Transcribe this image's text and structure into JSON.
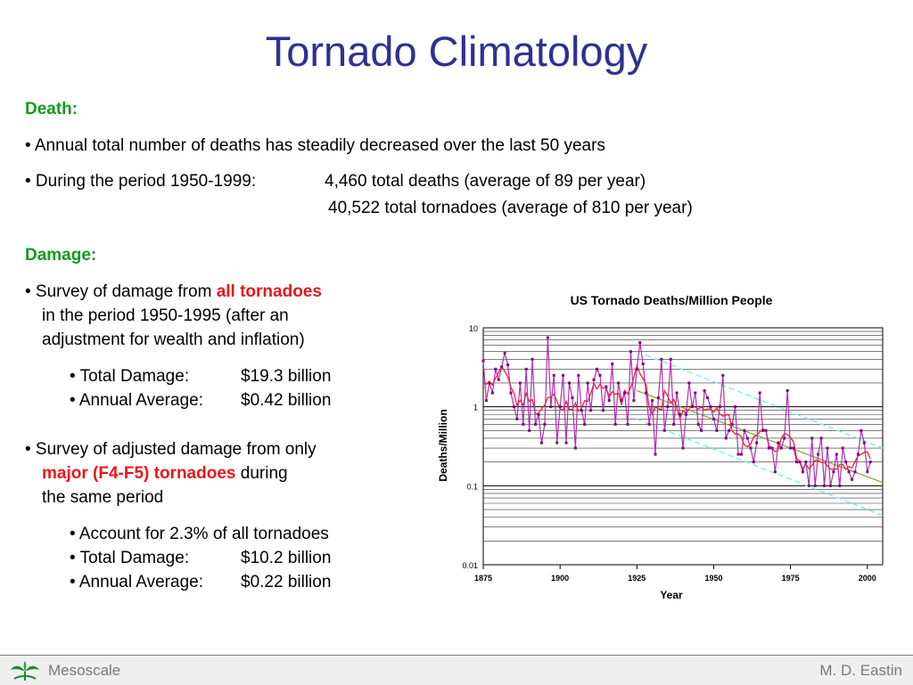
{
  "title": "Tornado Climatology",
  "death": {
    "heading": "Death:",
    "bullet1": "• Annual total number of deaths has steadily decreased over the last 50 years",
    "bullet2a": "• During the period 1950-1999:",
    "bullet2b": "4,460 total deaths (average of 89 per year)",
    "bullet2c": "40,522 total tornadoes (average of 810 per year)"
  },
  "damage": {
    "heading": "Damage:",
    "s1_pre": "• Survey of damage from ",
    "s1_red": "all tornadoes",
    "s1_l2": "in the period 1950-1995 (after an",
    "s1_l3": "adjustment for wealth and inflation)",
    "s1_i1_label": "• Total Damage:",
    "s1_i1_value": "$19.3 billion",
    "s1_i2_label": "• Annual Average:",
    "s1_i2_value": "$0.42 billion",
    "s2_l1": "• Survey of adjusted damage from only",
    "s2_red": "major (F4-F5) tornadoes",
    "s2_post": " during",
    "s2_l3": "the same period",
    "s2_i1": "• Account for 2.3% of all tornadoes",
    "s2_i2_label": "• Total Damage:",
    "s2_i2_value": "$10.2 billion",
    "s2_i3_label": "• Annual Average:",
    "s2_i3_value": "$0.22 billion"
  },
  "footer": {
    "left": "Mesoscale",
    "right": "M. D. Eastin"
  },
  "colors": {
    "title": "#2e3192",
    "heading": "#129b1d",
    "emphasis": "#e8171a",
    "series_annual": "#b030b0",
    "series_smoothed": "#ff2020",
    "trend": "#80a030",
    "envelope": "#80f0f0"
  },
  "chart_data": {
    "type": "line",
    "title": "US Tornado Deaths/Million People",
    "xlabel": "Year",
    "ylabel": "Deaths/Million",
    "yscale": "log",
    "ylim": [
      0.01,
      10
    ],
    "xlim": [
      1875,
      2005
    ],
    "xticks": [
      1875,
      1900,
      1925,
      1950,
      1975,
      2000
    ],
    "yticks": [
      10,
      1,
      0.1,
      0.01
    ],
    "ytick_labels": [
      "10",
      "1",
      "0.1",
      "0.01"
    ],
    "grid": true,
    "series": [
      {
        "x": [
          1875,
          1876,
          1877,
          1878,
          1879,
          1880,
          1881,
          1882,
          1883,
          1884,
          1885,
          1886,
          1887,
          1888,
          1889,
          1890,
          1891,
          1892,
          1893,
          1894,
          1895,
          1896,
          1897,
          1898,
          1899,
          1900,
          1901,
          1902,
          1903,
          1904,
          1905,
          1906,
          1907,
          1908,
          1909,
          1910,
          1911,
          1912,
          1913,
          1914,
          1915,
          1916,
          1917,
          1918,
          1919,
          1920,
          1921,
          1922,
          1923,
          1924,
          1925,
          1926,
          1927,
          1928,
          1929,
          1930,
          1931,
          1932,
          1933,
          1934,
          1935,
          1936,
          1937,
          1938,
          1939,
          1940,
          1941,
          1942,
          1943,
          1944,
          1945,
          1946,
          1947,
          1948,
          1949,
          1950,
          1951,
          1952,
          1953,
          1954,
          1955,
          1956,
          1957,
          1958,
          1959,
          1960,
          1961,
          1962,
          1963,
          1964,
          1965,
          1966,
          1967,
          1968,
          1969,
          1970,
          1971,
          1972,
          1973,
          1974,
          1975,
          1976,
          1977,
          1978,
          1979,
          1980,
          1981,
          1982,
          1983,
          1984,
          1985,
          1986,
          1987,
          1988,
          1989,
          1990,
          1991,
          1992,
          1993,
          1994,
          1995,
          1996,
          1997,
          1998,
          1999,
          2000,
          2001
        ],
        "y": [
          3.8,
          1.2,
          2.0,
          1.5,
          3.0,
          2.2,
          3.2,
          4.8,
          3.4,
          1.5,
          1.0,
          0.7,
          2.0,
          0.6,
          3.0,
          0.5,
          4.0,
          0.6,
          0.8,
          0.35,
          0.6,
          7.5,
          1.0,
          2.5,
          0.35,
          1.0,
          2.5,
          0.35,
          2.0,
          1.3,
          0.3,
          2.5,
          0.9,
          0.6,
          2.0,
          0.9,
          2.2,
          3.0,
          2.5,
          0.9,
          1.8,
          1.2,
          3.5,
          0.6,
          2.0,
          1.2,
          1.5,
          0.6,
          5.0,
          1.2,
          3.0,
          6.5,
          3.5,
          1.5,
          0.6,
          1.2,
          0.25,
          1.3,
          4.0,
          0.5,
          1.0,
          4.0,
          0.6,
          1.5,
          0.8,
          0.3,
          0.8,
          2.0,
          1.0,
          1.5,
          0.6,
          0.5,
          1.6,
          1.3,
          1.0,
          0.7,
          0.5,
          1.0,
          2.5,
          0.4,
          0.5,
          0.6,
          1.0,
          0.25,
          0.25,
          0.5,
          0.4,
          0.3,
          0.2,
          0.35,
          1.5,
          0.5,
          0.5,
          0.3,
          0.3,
          0.15,
          0.35,
          0.3,
          0.4,
          1.6,
          0.3,
          0.3,
          0.2,
          0.2,
          0.15,
          0.2,
          0.1,
          0.4,
          0.1,
          0.25,
          0.4,
          0.1,
          0.3,
          0.1,
          0.15,
          0.25,
          0.1,
          0.3,
          0.2,
          0.15,
          0.12,
          0.15,
          0.25,
          0.5,
          0.35,
          0.15,
          0.2
        ],
        "color": "#b030b0"
      }
    ]
  }
}
